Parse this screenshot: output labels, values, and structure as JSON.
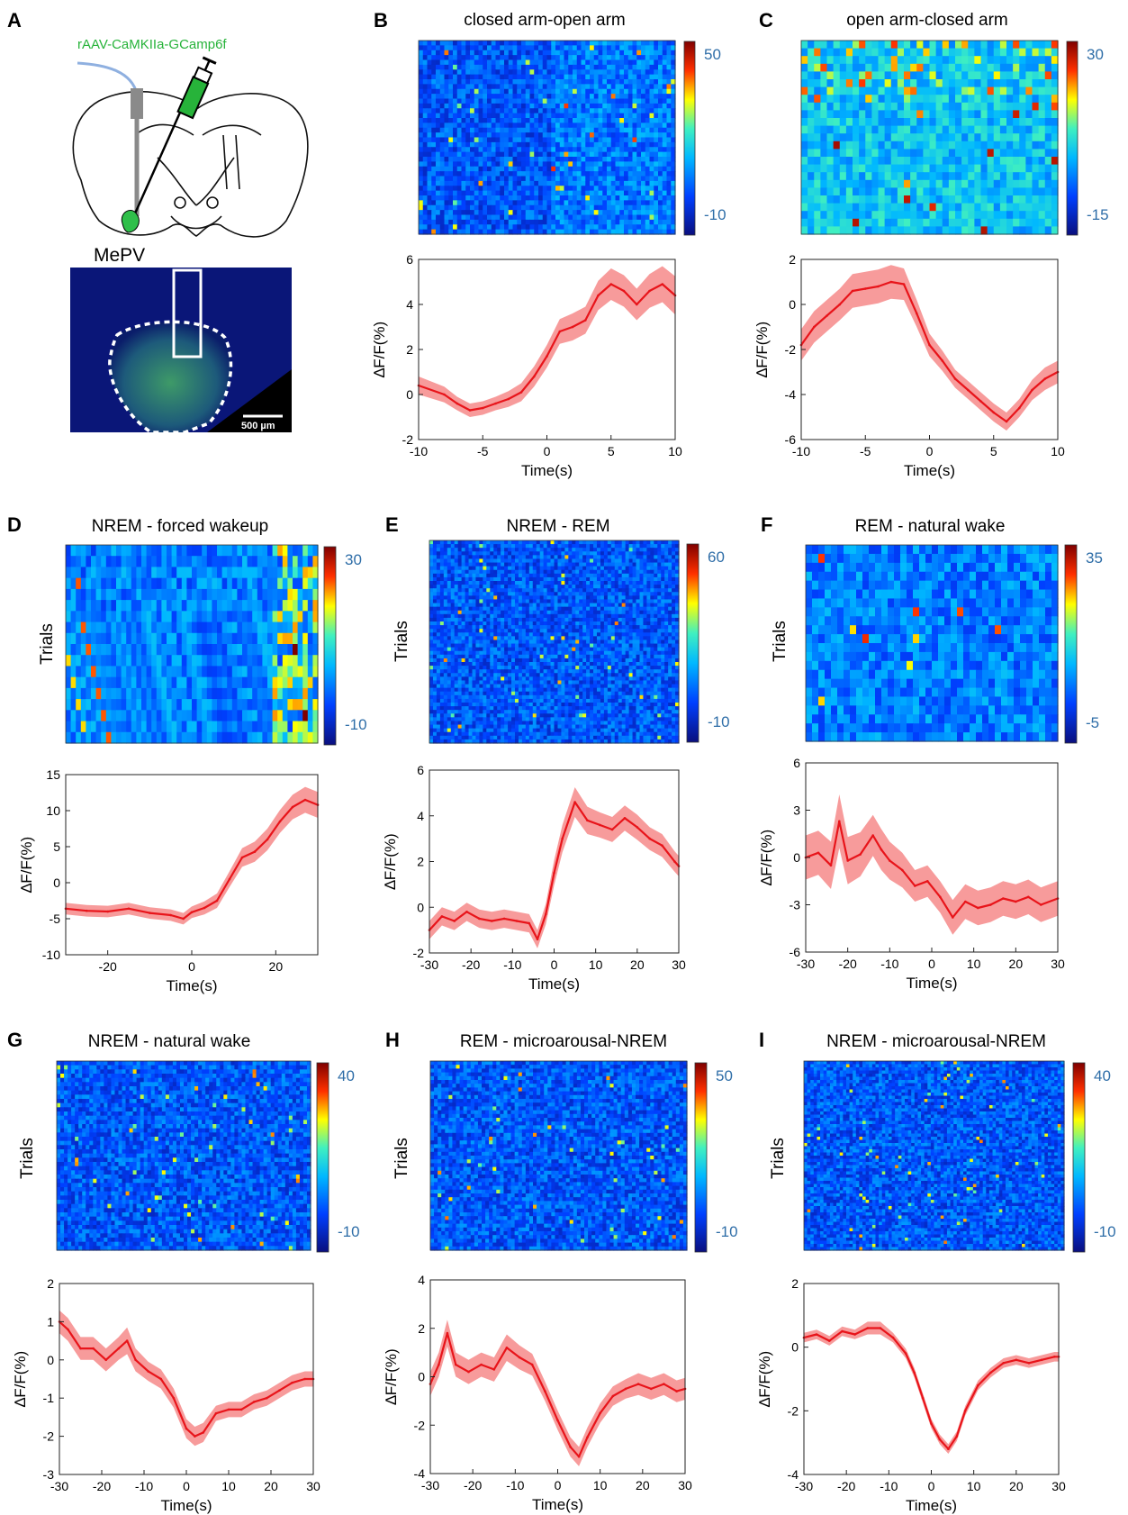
{
  "colors": {
    "trace": "#e8141a",
    "band": "#f47a7a",
    "colorbar_label": "#2f6ea8",
    "heat_low": "#0a0f7e",
    "heat_mid": "#1aa0e6",
    "heat_high": "#8b0000"
  },
  "panel_a": {
    "letter": "A",
    "virus_label": "rAAV-CaMKIIa-GCamp6f",
    "region_label": "MePV",
    "scale_bar_label": "500 µm"
  },
  "common": {
    "ylabel": "∆F/F(%)",
    "xlabel": "Time(s)",
    "trials_label": "Trials"
  },
  "chart_data": [
    {
      "id": "B",
      "letter": "B",
      "type": "line",
      "title": "closed arm-open arm",
      "heatmap": {
        "colorbar_max": "50",
        "colorbar_min": "-10",
        "trials_label": ""
      },
      "xlabel": "Time(s)",
      "ylabel": "∆F/F(%)",
      "xlim": [
        -10,
        10
      ],
      "ylim": [
        -2,
        6
      ],
      "xticks": [
        -10,
        -5,
        0,
        5,
        10
      ],
      "yticks": [
        -2,
        0,
        2,
        4,
        6
      ],
      "x": [
        -10,
        -8,
        -7,
        -6,
        -5,
        -4,
        -3,
        -2,
        -1,
        0,
        1,
        2,
        3,
        4,
        5,
        6,
        7,
        8,
        9,
        10
      ],
      "mean": [
        0.4,
        0.0,
        -0.4,
        -0.7,
        -0.6,
        -0.4,
        -0.2,
        0.1,
        0.8,
        1.7,
        2.8,
        3.0,
        3.3,
        4.4,
        4.9,
        4.6,
        4.0,
        4.6,
        4.9,
        4.4
      ],
      "sem": [
        0.4,
        0.35,
        0.3,
        0.3,
        0.3,
        0.3,
        0.35,
        0.4,
        0.45,
        0.5,
        0.55,
        0.6,
        0.6,
        0.65,
        0.7,
        0.7,
        0.7,
        0.75,
        0.8,
        0.85
      ]
    },
    {
      "id": "C",
      "letter": "C",
      "type": "line",
      "title": "open arm-closed arm",
      "heatmap": {
        "colorbar_max": "30",
        "colorbar_min": "-15",
        "trials_label": ""
      },
      "xlabel": "Time(s)",
      "ylabel": "∆F/F(%)",
      "xlim": [
        -10,
        10
      ],
      "ylim": [
        -6,
        2
      ],
      "xticks": [
        -10,
        -5,
        0,
        5,
        10
      ],
      "yticks": [
        -6,
        -4,
        -2,
        0,
        2
      ],
      "x": [
        -10,
        -9,
        -8,
        -7,
        -6,
        -5,
        -4,
        -3,
        -2,
        -1,
        0,
        1,
        2,
        3,
        4,
        5,
        6,
        7,
        8,
        9,
        10
      ],
      "mean": [
        -1.8,
        -1.0,
        -0.5,
        0.0,
        0.6,
        0.7,
        0.8,
        1.0,
        0.9,
        -0.4,
        -1.8,
        -2.5,
        -3.3,
        -3.8,
        -4.3,
        -4.8,
        -5.2,
        -4.6,
        -3.8,
        -3.3,
        -3.0
      ],
      "sem": [
        0.7,
        0.7,
        0.7,
        0.7,
        0.75,
        0.75,
        0.75,
        0.75,
        0.7,
        0.6,
        0.5,
        0.45,
        0.4,
        0.4,
        0.4,
        0.4,
        0.4,
        0.4,
        0.45,
        0.5,
        0.5
      ]
    },
    {
      "id": "D",
      "letter": "D",
      "type": "line",
      "title": "NREM - forced wakeup",
      "heatmap": {
        "colorbar_max": "30",
        "colorbar_min": "-10",
        "trials_label": "Trials"
      },
      "xlabel": "Time(s)",
      "ylabel": "∆F/F(%)",
      "xlim": [
        -30,
        30
      ],
      "ylim": [
        -10,
        15
      ],
      "xticks": [
        -20,
        0,
        20
      ],
      "yticks": [
        -10,
        -5,
        0,
        5,
        10,
        15
      ],
      "x": [
        -30,
        -25,
        -20,
        -15,
        -10,
        -5,
        -2,
        0,
        3,
        6,
        9,
        12,
        15,
        18,
        21,
        24,
        27,
        30
      ],
      "mean": [
        -3.6,
        -3.9,
        -4.0,
        -3.6,
        -4.2,
        -4.5,
        -5.0,
        -4.1,
        -3.5,
        -2.5,
        0.5,
        3.5,
        4.3,
        6.0,
        8.5,
        10.5,
        11.5,
        10.8
      ],
      "sem": [
        0.8,
        0.8,
        0.8,
        0.8,
        0.8,
        0.8,
        0.8,
        0.8,
        0.9,
        1.0,
        1.1,
        1.3,
        1.4,
        1.5,
        1.6,
        1.7,
        1.8,
        1.8
      ]
    },
    {
      "id": "E",
      "letter": "E",
      "type": "line",
      "title": "NREM - REM",
      "heatmap": {
        "colorbar_max": "60",
        "colorbar_min": "-10",
        "trials_label": "Trials"
      },
      "xlabel": "Time(s)",
      "ylabel": "∆F/F(%)",
      "xlim": [
        -30,
        30
      ],
      "ylim": [
        -2,
        6
      ],
      "xticks": [
        -30,
        -20,
        -10,
        0,
        10,
        20,
        30
      ],
      "yticks": [
        -2,
        0,
        2,
        4,
        6
      ],
      "x": [
        -30,
        -27,
        -24,
        -21,
        -18,
        -15,
        -12,
        -9,
        -6,
        -4,
        -2,
        0,
        2,
        5,
        8,
        11,
        14,
        17,
        20,
        23,
        26,
        29,
        30
      ],
      "mean": [
        -1.0,
        -0.4,
        -0.6,
        -0.2,
        -0.5,
        -0.6,
        -0.5,
        -0.6,
        -0.7,
        -1.4,
        -0.3,
        1.5,
        3.0,
        4.6,
        3.8,
        3.6,
        3.4,
        3.9,
        3.5,
        3.0,
        2.7,
        2.0,
        1.8
      ],
      "sem": [
        0.4,
        0.4,
        0.4,
        0.4,
        0.4,
        0.4,
        0.4,
        0.4,
        0.4,
        0.4,
        0.45,
        0.55,
        0.6,
        0.65,
        0.6,
        0.55,
        0.55,
        0.55,
        0.55,
        0.5,
        0.5,
        0.45,
        0.45
      ]
    },
    {
      "id": "F",
      "letter": "F",
      "type": "line",
      "title": "REM - natural wake",
      "heatmap": {
        "colorbar_max": "35",
        "colorbar_min": "-5",
        "trials_label": "Trials"
      },
      "xlabel": "Time(s)",
      "ylabel": "∆F/F(%)",
      "xlim": [
        -30,
        30
      ],
      "ylim": [
        -6,
        6
      ],
      "xticks": [
        -30,
        -20,
        -10,
        0,
        10,
        20,
        30
      ],
      "yticks": [
        -6,
        -3,
        0,
        3,
        6
      ],
      "x": [
        -30,
        -27,
        -24,
        -22,
        -20,
        -17,
        -14,
        -12,
        -10,
        -7,
        -4,
        -1,
        2,
        5,
        8,
        11,
        14,
        17,
        20,
        23,
        26,
        30
      ],
      "mean": [
        0.0,
        0.3,
        -0.5,
        2.3,
        -0.2,
        0.2,
        1.4,
        0.5,
        -0.2,
        -0.8,
        -1.8,
        -1.5,
        -2.5,
        -3.8,
        -2.8,
        -3.2,
        -3.0,
        -2.6,
        -2.8,
        -2.5,
        -3.0,
        -2.6
      ],
      "sem": [
        1.4,
        1.4,
        1.5,
        1.7,
        1.5,
        1.4,
        1.3,
        1.3,
        1.2,
        1.1,
        1.0,
        1.0,
        1.0,
        1.1,
        1.1,
        1.1,
        1.1,
        1.1,
        1.1,
        1.1,
        1.1,
        1.1
      ]
    },
    {
      "id": "G",
      "letter": "G",
      "type": "line",
      "title": "NREM - natural wake",
      "heatmap": {
        "colorbar_max": "40",
        "colorbar_min": "-10",
        "trials_label": "Trials"
      },
      "xlabel": "Time(s)",
      "ylabel": "∆F/F(%)",
      "xlim": [
        -30,
        30
      ],
      "ylim": [
        -3,
        2
      ],
      "xticks": [
        -30,
        -20,
        -10,
        0,
        10,
        20,
        30
      ],
      "yticks": [
        -3,
        -2,
        -1,
        0,
        1,
        2
      ],
      "x": [
        -30,
        -28,
        -25,
        -22,
        -19,
        -16,
        -14,
        -12,
        -9,
        -6,
        -3,
        0,
        2,
        4,
        7,
        10,
        13,
        16,
        19,
        22,
        25,
        28,
        30
      ],
      "mean": [
        1.0,
        0.8,
        0.3,
        0.3,
        0.0,
        0.3,
        0.5,
        0.0,
        -0.3,
        -0.5,
        -1.0,
        -1.8,
        -2.0,
        -1.9,
        -1.4,
        -1.3,
        -1.3,
        -1.1,
        -1.0,
        -0.8,
        -0.6,
        -0.5,
        -0.5
      ],
      "sem": [
        0.3,
        0.3,
        0.3,
        0.3,
        0.3,
        0.3,
        0.35,
        0.3,
        0.25,
        0.25,
        0.25,
        0.25,
        0.25,
        0.25,
        0.2,
        0.2,
        0.2,
        0.2,
        0.2,
        0.2,
        0.2,
        0.2,
        0.2
      ]
    },
    {
      "id": "H",
      "letter": "H",
      "type": "line",
      "title": "REM - microarousal-NREM",
      "heatmap": {
        "colorbar_max": "50",
        "colorbar_min": "-10",
        "trials_label": "Trials"
      },
      "xlabel": "Time(s)",
      "ylabel": "∆F/F(%)",
      "xlim": [
        -30,
        30
      ],
      "ylim": [
        -4,
        4
      ],
      "xticks": [
        -30,
        -20,
        -10,
        0,
        10,
        20,
        30
      ],
      "yticks": [
        -4,
        -2,
        0,
        2,
        4
      ],
      "x": [
        -30,
        -28,
        -26,
        -24,
        -21,
        -18,
        -15,
        -12,
        -9,
        -6,
        -3,
        0,
        3,
        5,
        7,
        10,
        13,
        16,
        19,
        22,
        25,
        28,
        30
      ],
      "mean": [
        -0.3,
        0.5,
        1.8,
        0.5,
        0.2,
        0.5,
        0.3,
        1.2,
        0.8,
        0.5,
        -0.6,
        -1.8,
        -2.9,
        -3.3,
        -2.5,
        -1.5,
        -0.8,
        -0.5,
        -0.3,
        -0.5,
        -0.3,
        -0.6,
        -0.5
      ],
      "sem": [
        0.5,
        0.5,
        0.55,
        0.5,
        0.5,
        0.5,
        0.5,
        0.55,
        0.5,
        0.45,
        0.4,
        0.4,
        0.4,
        0.4,
        0.4,
        0.4,
        0.4,
        0.4,
        0.45,
        0.45,
        0.45,
        0.45,
        0.45
      ]
    },
    {
      "id": "I",
      "letter": "I",
      "type": "line",
      "title": "NREM - microarousal-NREM",
      "heatmap": {
        "colorbar_max": "40",
        "colorbar_min": "-10",
        "trials_label": "Trials"
      },
      "xlabel": "Time(s)",
      "ylabel": "∆F/F(%)",
      "xlim": [
        -30,
        30
      ],
      "ylim": [
        -4,
        2
      ],
      "xticks": [
        -30,
        -20,
        -10,
        0,
        10,
        20,
        30
      ],
      "yticks": [
        -4,
        -2,
        0,
        2
      ],
      "x": [
        -30,
        -27,
        -24,
        -21,
        -18,
        -15,
        -12,
        -9,
        -6,
        -4,
        -2,
        0,
        2,
        4,
        6,
        8,
        11,
        14,
        17,
        20,
        23,
        26,
        29,
        30
      ],
      "mean": [
        0.3,
        0.4,
        0.2,
        0.5,
        0.4,
        0.6,
        0.6,
        0.3,
        -0.2,
        -0.8,
        -1.6,
        -2.4,
        -2.9,
        -3.2,
        -2.8,
        -2.0,
        -1.2,
        -0.8,
        -0.5,
        -0.4,
        -0.5,
        -0.4,
        -0.3,
        -0.3
      ],
      "sem": [
        0.15,
        0.15,
        0.15,
        0.15,
        0.15,
        0.2,
        0.2,
        0.15,
        0.15,
        0.15,
        0.15,
        0.15,
        0.15,
        0.15,
        0.15,
        0.15,
        0.15,
        0.15,
        0.15,
        0.15,
        0.15,
        0.15,
        0.15,
        0.15
      ]
    }
  ]
}
